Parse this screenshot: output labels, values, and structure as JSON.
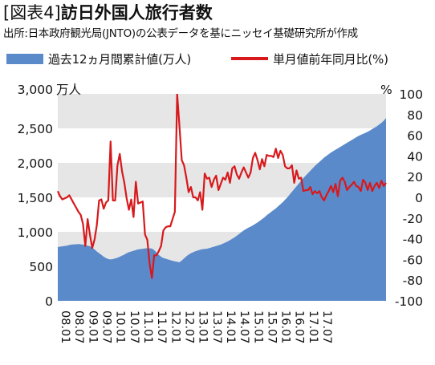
{
  "title": {
    "bracket": "[図表4]",
    "text": "訪日外国人旅行者数"
  },
  "subtitle": "出所:日本政府観光局(JNTO)の公表データを基にニッセイ基礎研究所が作成",
  "legend": {
    "area_label": "過去12ヵ月間累計値(万人)",
    "line_label": "単月値前年同月比(%)"
  },
  "colors": {
    "area": "#5b8acb",
    "line": "#d7191c",
    "band": "#e6e6e6"
  },
  "chart_data": {
    "type": "area",
    "x_tick_labels": [
      "08.01",
      "08.07",
      "09.01",
      "09.07",
      "10.01",
      "10.07",
      "11.01",
      "11.07",
      "12.01",
      "12.07",
      "13.01",
      "13.07",
      "14.01",
      "14.07",
      "15.01",
      "15.07",
      "16.01",
      "16.07",
      "17.01",
      "17.07"
    ],
    "left_axis": {
      "unit": "万人",
      "ticks": [
        "3,000",
        "2,500",
        "2,000",
        "1,500",
        "1,000",
        "500",
        "0"
      ],
      "range": [
        0,
        3000
      ]
    },
    "right_axis": {
      "unit": "%",
      "ticks": [
        "100",
        "80",
        "60",
        "40",
        "20",
        "0",
        "-20",
        "-40",
        "-60",
        "-80",
        "-100"
      ],
      "range": [
        -100,
        100
      ]
    },
    "series": [
      {
        "name": "過去12ヵ月間累計値(万人)",
        "type": "area",
        "axis": "left",
        "values": [
          780,
          785,
          790,
          795,
          800,
          810,
          815,
          818,
          820,
          822,
          820,
          815,
          810,
          800,
          790,
          770,
          745,
          715,
          690,
          665,
          640,
          620,
          605,
          600,
          605,
          615,
          625,
          640,
          655,
          670,
          690,
          705,
          715,
          725,
          735,
          745,
          750,
          755,
          760,
          762,
          760,
          758,
          735,
          700,
          665,
          640,
          620,
          610,
          600,
          590,
          580,
          572,
          565,
          560,
          585,
          615,
          645,
          670,
          690,
          705,
          720,
          730,
          740,
          748,
          752,
          756,
          765,
          775,
          785,
          795,
          805,
          815,
          830,
          845,
          860,
          880,
          900,
          920,
          945,
          970,
          995,
          1020,
          1040,
          1060,
          1075,
          1095,
          1115,
          1135,
          1160,
          1185,
          1210,
          1240,
          1265,
          1290,
          1315,
          1340,
          1370,
          1400,
          1430,
          1465,
          1500,
          1540,
          1580,
          1620,
          1660,
          1700,
          1740,
          1780,
          1815,
          1850,
          1885,
          1920,
          1955,
          1985,
          2015,
          2045,
          2075,
          2100,
          2125,
          2150,
          2170,
          2190,
          2210,
          2230,
          2250,
          2270,
          2290,
          2310,
          2330,
          2350,
          2370,
          2390,
          2405,
          2420,
          2435,
          2450,
          2470,
          2490,
          2510,
          2530,
          2555,
          2580,
          2610,
          2650
        ]
      },
      {
        "name": "単月値前年同月比(%)",
        "type": "line",
        "axis": "right",
        "values": [
          6,
          1,
          -2,
          -1,
          0,
          2,
          -2,
          -6,
          -10,
          -14,
          -17,
          -26,
          -47,
          -21,
          -36,
          -49,
          -41,
          -27,
          -3,
          -2,
          -11,
          -5,
          -3,
          54,
          -3,
          -3,
          31,
          42,
          25,
          14,
          -1,
          -12,
          -2,
          -19,
          15,
          -6,
          -5,
          -4,
          -36,
          -41,
          -64,
          -78,
          -56,
          -56,
          -52,
          -47,
          -32,
          -29,
          -28,
          -28,
          -21,
          -14,
          100,
          69,
          36,
          31,
          19,
          5,
          10,
          0,
          0,
          -3,
          5,
          -12,
          23,
          18,
          19,
          10,
          17,
          21,
          7,
          13,
          19,
          17,
          24,
          14,
          28,
          30,
          22,
          18,
          24,
          29,
          24,
          19,
          24,
          38,
          43,
          36,
          27,
          37,
          30,
          41,
          40,
          40,
          39,
          47,
          38,
          45,
          41,
          30,
          28,
          28,
          31,
          14,
          26,
          18,
          19,
          6,
          7,
          7,
          10,
          3,
          6,
          4,
          6,
          0,
          -3,
          2,
          6,
          11,
          5,
          13,
          1,
          16,
          19,
          15,
          7,
          10,
          12,
          15,
          11,
          10,
          6,
          17,
          14,
          7,
          14,
          6,
          11,
          14,
          9,
          16,
          11,
          14
        ]
      }
    ]
  }
}
